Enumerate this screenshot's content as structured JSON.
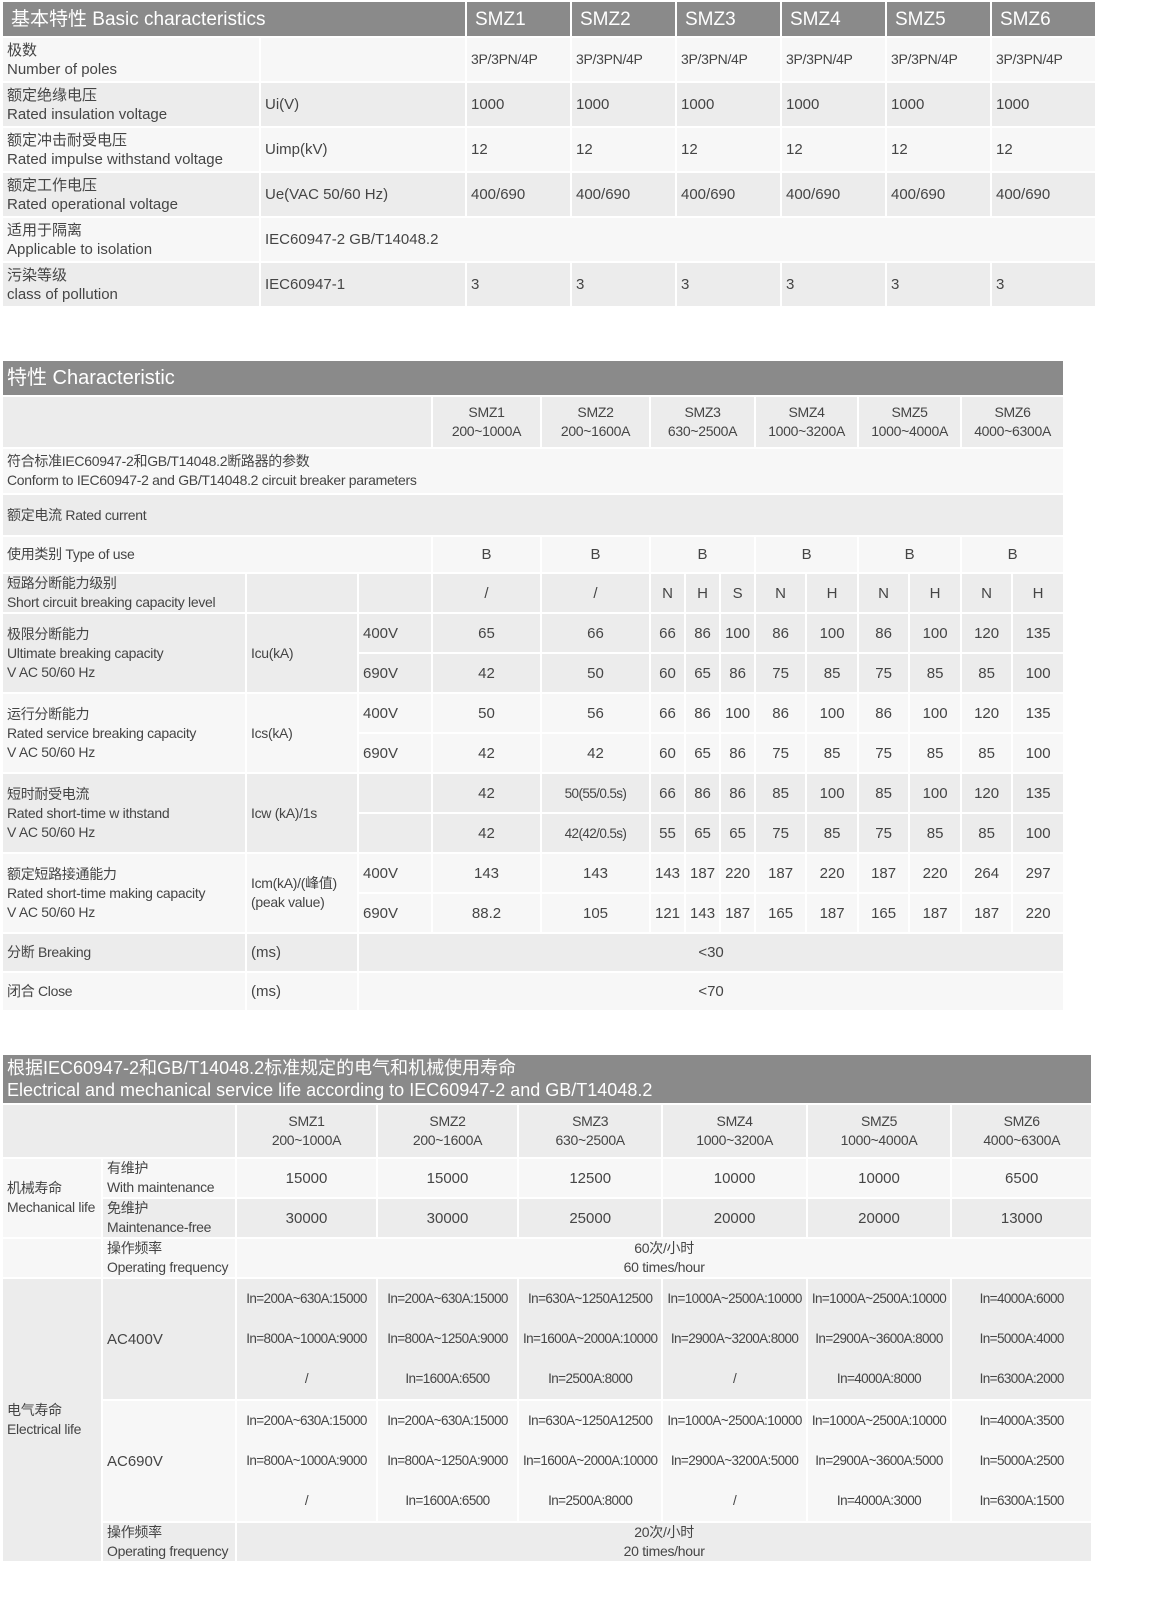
{
  "basic": {
    "title": "基本特性  Basic characteristics",
    "models": [
      "SMZ1",
      "SMZ2",
      "SMZ3",
      "SMZ4",
      "SMZ5",
      "SMZ6"
    ],
    "rows": [
      {
        "zh": "极数",
        "en": "Number of poles",
        "unit": "",
        "values": [
          "3P/3PN/4P",
          "3P/3PN/4P",
          "3P/3PN/4P",
          "3P/3PN/4P",
          "3P/3PN/4P",
          "3P/3PN/4P"
        ]
      },
      {
        "zh": "额定绝缘电压",
        "en": "Rated insulation voltage",
        "unit": "Ui(V)",
        "values": [
          "1000",
          "1000",
          "1000",
          "1000",
          "1000",
          "1000"
        ]
      },
      {
        "zh": "额定冲击耐受电压",
        "en": "Rated impulse withstand voltage",
        "unit": "Uimp(kV)",
        "values": [
          "12",
          "12",
          "12",
          "12",
          "12",
          "12"
        ]
      },
      {
        "zh": "额定工作电压",
        "en": "Rated operational voltage",
        "unit": "Ue(VAC 50/60 Hz)",
        "values": [
          "400/690",
          "400/690",
          "400/690",
          "400/690",
          "400/690",
          "400/690"
        ]
      },
      {
        "zh": "适用于隔离",
        "en": "Applicable to isolation",
        "unit": "IEC60947-2 GB/T14048.2",
        "values": [
          "",
          "",
          "",
          "",
          "",
          ""
        ]
      },
      {
        "zh": "污染等级",
        "en": "class of pollution",
        "unit": "IEC60947-1",
        "values": [
          "3",
          "3",
          "3",
          "3",
          "3",
          "3"
        ]
      }
    ]
  },
  "char": {
    "title": "特性  Characteristic",
    "models": [
      {
        "name": "SMZ1",
        "range": "200~1000A"
      },
      {
        "name": "SMZ2",
        "range": "200~1600A"
      },
      {
        "name": "SMZ3",
        "range": "630~2500A"
      },
      {
        "name": "SMZ4",
        "range": "1000~3200A"
      },
      {
        "name": "SMZ5",
        "range": "1000~4000A"
      },
      {
        "name": "SMZ6",
        "range": "4000~6300A"
      }
    ],
    "conform": {
      "zh": "符合标准IEC60947-2和GB/T14048.2断路器的参数",
      "en": "Conform to IEC60947-2 and GB/T14048.2 circuit breaker parameters"
    },
    "rated_current": "额定电流 Rated current",
    "type_of_use": {
      "label": "使用类别 Type of use",
      "values": [
        "B",
        "B",
        "B",
        "B",
        "B",
        "B"
      ]
    },
    "sc_level": {
      "zh": "短路分断能力级别",
      "en": "Short circuit breaking capacity level",
      "values": [
        "/",
        "/",
        "N",
        "H",
        "S",
        "N",
        "H",
        "N",
        "H",
        "N",
        "H"
      ]
    },
    "icu": {
      "zh": "极限分断能力",
      "en": "Ultimate breaking capacity",
      "en2": "V AC 50/60 Hz",
      "unit": "Icu(kA)",
      "v1": "400V",
      "v2": "690V",
      "r1": [
        "65",
        "66",
        "66",
        "86",
        "100",
        "86",
        "100",
        "86",
        "100",
        "120",
        "135"
      ],
      "r2": [
        "42",
        "50",
        "60",
        "65",
        "86",
        "75",
        "85",
        "75",
        "85",
        "85",
        "100"
      ]
    },
    "ics": {
      "zh": "运行分断能力",
      "en": "Rated service breaking capacity",
      "en2": "V AC 50/60 Hz",
      "unit": "Ics(kA)",
      "v1": "400V",
      "v2": "690V",
      "r1": [
        "50",
        "56",
        "66",
        "86",
        "100",
        "86",
        "100",
        "86",
        "100",
        "120",
        "135"
      ],
      "r2": [
        "42",
        "42",
        "60",
        "65",
        "86",
        "75",
        "85",
        "75",
        "85",
        "85",
        "100"
      ]
    },
    "icw": {
      "zh": "短时耐受电流",
      "en": "Rated short-time w ithstand",
      "en2": "V AC 50/60 Hz",
      "unit": "Icw (kA)/1s",
      "v1": "",
      "v2": "",
      "r1": [
        "42",
        "50(55/0.5s)",
        "66",
        "86",
        "86",
        "85",
        "100",
        "85",
        "100",
        "120",
        "135"
      ],
      "r2": [
        "42",
        "42(42/0.5s)",
        "55",
        "65",
        "65",
        "75",
        "85",
        "75",
        "85",
        "85",
        "100"
      ]
    },
    "icm": {
      "zh": "额定短路接通能力",
      "en": "Rated short-time making capacity",
      "en2": "V AC 50/60 Hz",
      "unit": "Icm(kA)/(峰值)",
      "unit2": "(peak value)",
      "v1": "400V",
      "v2": "690V",
      "r1": [
        "143",
        "143",
        "143",
        "187",
        "220",
        "187",
        "220",
        "187",
        "220",
        "264",
        "297"
      ],
      "r2": [
        "88.2",
        "105",
        "121",
        "143",
        "187",
        "165",
        "187",
        "165",
        "187",
        "187",
        "220"
      ]
    },
    "breaking": {
      "label": "分断  Breaking",
      "unit": "(ms)",
      "value": "<30"
    },
    "close": {
      "label": "闭合  Close",
      "unit": "(ms)",
      "value": "<70"
    }
  },
  "life": {
    "title_zh": "根据IEC60947-2和GB/T14048.2标准规定的电气和机械使用寿命",
    "title_en": "Electrical and mechanical service life according to IEC60947-2 and GB/T14048.2",
    "models": [
      {
        "name": "SMZ1",
        "range": "200~1000A"
      },
      {
        "name": "SMZ2",
        "range": "200~1600A"
      },
      {
        "name": "SMZ3",
        "range": "630~2500A"
      },
      {
        "name": "SMZ4",
        "range": "1000~3200A"
      },
      {
        "name": "SMZ5",
        "range": "1000~4000A"
      },
      {
        "name": "SMZ6",
        "range": "4000~6300A"
      }
    ],
    "mech": {
      "zh": "机械寿命",
      "en": "Mechanical life",
      "with": {
        "zh": "有维护",
        "en": "With maintenance",
        "values": [
          "15000",
          "15000",
          "12500",
          "10000",
          "10000",
          "6500"
        ]
      },
      "free": {
        "zh": "免维护",
        "en": "Maintenance-free",
        "values": [
          "30000",
          "30000",
          "25000",
          "20000",
          "20000",
          "13000"
        ]
      },
      "freq": {
        "zh": "操作频率",
        "en": "Operating frequency",
        "v_zh": "60次/小时",
        "v_en": "60 times/hour"
      }
    },
    "elec": {
      "zh": "电气寿命",
      "en": "Electrical life",
      "ac400": {
        "label": "AC400V",
        "values": [
          [
            "In=200A~630A:15000",
            "In=800A~1000A:9000",
            "/"
          ],
          [
            "In=200A~630A:15000",
            "In=800A~1250A:9000",
            "In=1600A:6500"
          ],
          [
            "In=630A~1250A12500",
            "In=1600A~2000A:10000",
            "In=2500A:8000"
          ],
          [
            "In=1000A~2500A:10000",
            "In=2900A~3200A:8000",
            "/"
          ],
          [
            "In=1000A~2500A:10000",
            "In=2900A~3600A:8000",
            "In=4000A:8000"
          ],
          [
            "In=4000A:6000",
            "In=5000A:4000",
            "In=6300A:2000"
          ]
        ]
      },
      "ac690": {
        "label": "AC690V",
        "values": [
          [
            "In=200A~630A:15000",
            "In=800A~1000A:9000",
            "/"
          ],
          [
            "In=200A~630A:15000",
            "In=800A~1250A:9000",
            "In=1600A:6500"
          ],
          [
            "In=630A~1250A12500",
            "In=1600A~2000A:10000",
            "In=2500A:8000"
          ],
          [
            "In=1000A~2500A:10000",
            "In=2900A~3200A:5000",
            "/"
          ],
          [
            "In=1000A~2500A:10000",
            "In=2900A~3600A:5000",
            "In=4000A:3000"
          ],
          [
            "In=4000A:3500",
            "In=5000A:2500",
            "In=6300A:1500"
          ]
        ]
      },
      "freq": {
        "zh": "操作频率",
        "en": "Operating frequency",
        "v_zh": "20次/小时",
        "v_en": "20 times/hour"
      }
    }
  },
  "colors": {
    "header": "#8a8a8a",
    "row_gray": "#ececec",
    "row_light": "#f7f7f7"
  }
}
